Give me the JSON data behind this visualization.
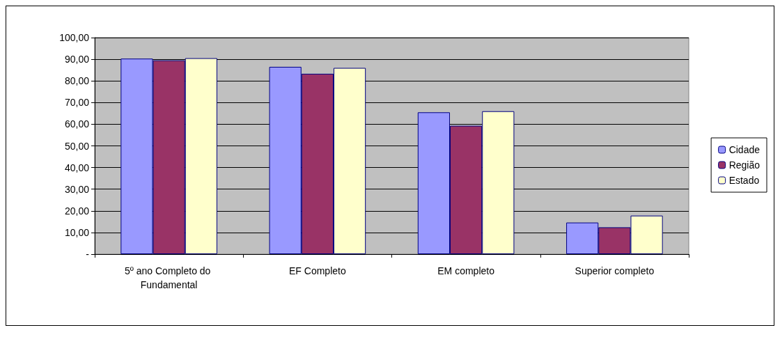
{
  "chart_data": {
    "type": "bar",
    "categories": [
      "5º ano Completo do Fundamental",
      "EF Completo",
      "EM completo",
      "Superior completo"
    ],
    "series": [
      {
        "name": "Cidade",
        "color": "#9999ff",
        "values": [
          90.3,
          86.5,
          65.5,
          14.6
        ]
      },
      {
        "name": "Região",
        "color": "#993366",
        "values": [
          89.5,
          83.3,
          59.3,
          12.4
        ]
      },
      {
        "name": "Estado",
        "color": "#ffffcc",
        "values": [
          90.5,
          86.0,
          66.0,
          17.8
        ]
      }
    ],
    "ylim": [
      0,
      100
    ],
    "yticks": [
      {
        "value": 0,
        "label": "-"
      },
      {
        "value": 10,
        "label": "10,00"
      },
      {
        "value": 20,
        "label": "20,00"
      },
      {
        "value": 30,
        "label": "30,00"
      },
      {
        "value": 40,
        "label": "40,00"
      },
      {
        "value": 50,
        "label": "50,00"
      },
      {
        "value": 60,
        "label": "60,00"
      },
      {
        "value": 70,
        "label": "70,00"
      },
      {
        "value": 80,
        "label": "80,00"
      },
      {
        "value": 90,
        "label": "90,00"
      },
      {
        "value": 100,
        "label": "100,00"
      }
    ],
    "grid": "y",
    "legend": "right"
  }
}
